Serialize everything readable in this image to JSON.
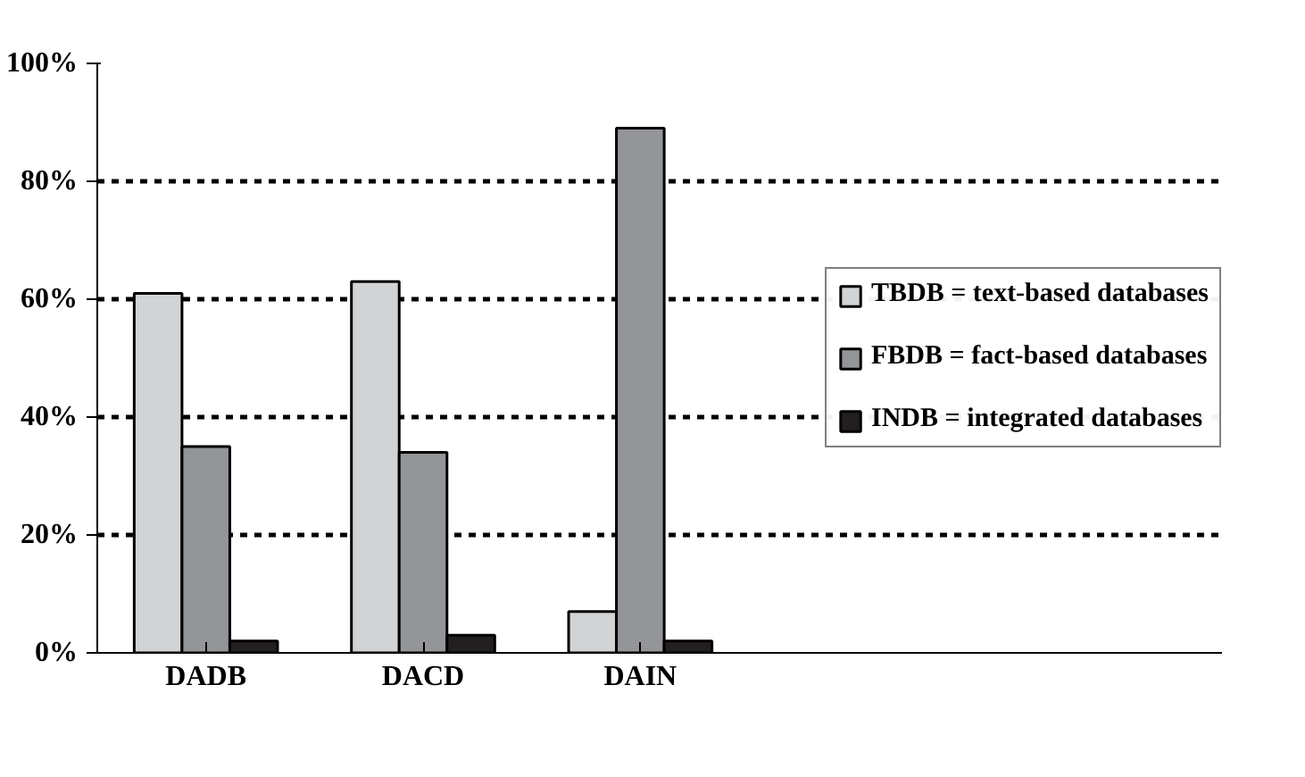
{
  "chart_data": {
    "type": "bar",
    "categories": [
      "DADB",
      "DACD",
      "DAIN"
    ],
    "series": [
      {
        "name": "TBDB = text-based databases",
        "color": "#d1d3d4",
        "values": [
          61,
          63,
          7
        ]
      },
      {
        "name": "FBDB = fact-based databases",
        "color": "#939598",
        "values": [
          35,
          34,
          89
        ]
      },
      {
        "name": "INDB = integrated databases",
        "color": "#231f20",
        "values": [
          2,
          3,
          2
        ]
      }
    ],
    "ylim": [
      0,
      100
    ],
    "yticks": [
      {
        "value": 0,
        "label": "0%"
      },
      {
        "value": 20,
        "label": "20%"
      },
      {
        "value": 40,
        "label": "40%"
      },
      {
        "value": 60,
        "label": "60%"
      },
      {
        "value": 80,
        "label": "80%"
      },
      {
        "value": 100,
        "label": "100%"
      }
    ],
    "grid": "y",
    "legend": "right"
  }
}
